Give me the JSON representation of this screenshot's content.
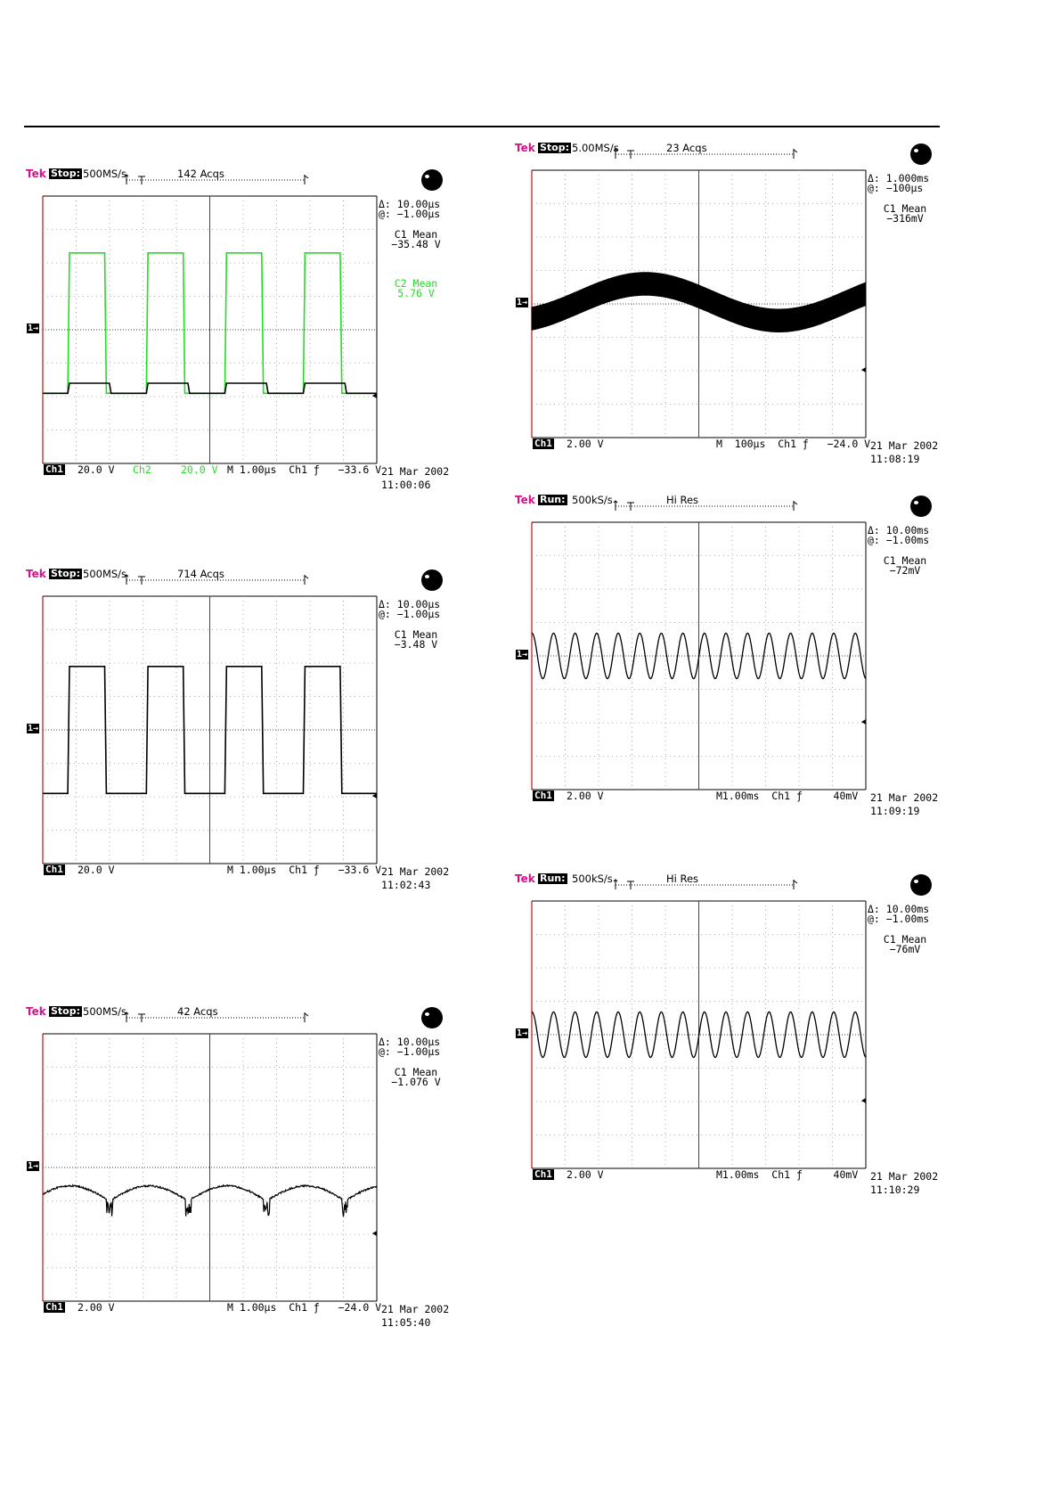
{
  "scopes": [
    {
      "id": "s1",
      "brand": "Tek",
      "state": "Stop:",
      "rate": "500MS/s",
      "acqs": "142 Acqs",
      "delta": "Δ: 10.00μs",
      "at": "@: −1.00μs",
      "c1_label": "C1 Mean",
      "c1_value": "−35.48 V",
      "c2_label": "C2 Mean",
      "c2_value": "5.76 V",
      "ch1": "Ch1",
      "ch1_scale": "20.0 V",
      "ch2": "Ch2",
      "ch2_scale": "20.0 V",
      "timebase": "M 1.00μs  Ch1 ƒ   −33.6 V",
      "date": "21 Mar 2002",
      "time": "11:00:06"
    },
    {
      "id": "s2",
      "brand": "Tek",
      "state": "Stop:",
      "rate": "500MS/s",
      "acqs": "714 Acqs",
      "delta": "Δ: 10.00μs",
      "at": "@: −1.00μs",
      "c1_label": "C1 Mean",
      "c1_value": "−3.48 V",
      "ch1": "Ch1",
      "ch1_scale": "20.0 V",
      "timebase": "M 1.00μs  Ch1 ƒ   −33.6 V",
      "date": "21 Mar 2002",
      "time": "11:02:43"
    },
    {
      "id": "s3",
      "brand": "Tek",
      "state": "Stop:",
      "rate": "500MS/s",
      "acqs": "42 Acqs",
      "delta": "Δ: 10.00μs",
      "at": "@: −1.00μs",
      "c1_label": "C1 Mean",
      "c1_value": "−1.076 V",
      "ch1": "Ch1",
      "ch1_scale": "2.00 V",
      "timebase": "M 1.00μs  Ch1 ƒ   −24.0 V",
      "date": "21 Mar 2002",
      "time": "11:05:40"
    },
    {
      "id": "s4",
      "brand": "Tek",
      "state": "Stop:",
      "rate": "5.00MS/s",
      "acqs": "23 Acqs",
      "delta": "Δ: 1.000ms",
      "at": "@: −100μs",
      "c1_label": "C1 Mean",
      "c1_value": "−316mV",
      "ch1": "Ch1",
      "ch1_scale": "2.00 V",
      "timebase": "M  100μs  Ch1 ƒ   −24.0 V",
      "date": "21 Mar 2002",
      "time": "11:08:19"
    },
    {
      "id": "s5",
      "brand": "Tek",
      "state": "Run:",
      "rate": "500kS/s",
      "acqs": "Hi Res",
      "delta": "Δ: 10.00ms",
      "at": "@: −1.00ms",
      "c1_label": "C1 Mean",
      "c1_value": "−72mV",
      "ch1": "Ch1",
      "ch1_scale": "2.00 V",
      "timebase": "M1.00ms  Ch1 ƒ     40mV",
      "date": "21 Mar 2002",
      "time": "11:09:19"
    },
    {
      "id": "s6",
      "brand": "Tek",
      "state": "Run:",
      "rate": "500kS/s",
      "acqs": "Hi Res",
      "delta": "Δ: 10.00ms",
      "at": "@: −1.00ms",
      "c1_label": "C1 Mean",
      "c1_value": "−76mV",
      "ch1": "Ch1",
      "ch1_scale": "2.00 V",
      "timebase": "M1.00ms  Ch1 ƒ     40mV",
      "date": "21 Mar 2002",
      "time": "11:10:29"
    }
  ],
  "chart_data": [
    {
      "type": "line",
      "panel": "s1",
      "xlabel": "M 1.00μs",
      "ylabel": "Ch1 20.0 V, Ch2 20.0 V",
      "grid": true,
      "series": [
        {
          "name": "Ch2",
          "color": "#22dd22",
          "shape": "square",
          "period_div": 2.35,
          "duty": 0.47,
          "high_div": 2.3,
          "low_div": -1.9
        },
        {
          "name": "Ch1",
          "color": "#000000",
          "shape": "square",
          "period_div": 2.35,
          "duty": 0.53,
          "high_div": -1.6,
          "low_div": -1.9
        }
      ]
    },
    {
      "type": "line",
      "panel": "s2",
      "xlabel": "M 1.00μs",
      "ylabel": "Ch1 20.0 V",
      "grid": true,
      "series": [
        {
          "name": "Ch1",
          "color": "#000000",
          "shape": "square",
          "period_div": 2.35,
          "duty": 0.47,
          "high_div": 1.9,
          "low_div": -1.9
        }
      ]
    },
    {
      "type": "line",
      "panel": "s3",
      "xlabel": "M 1.00μs",
      "ylabel": "Ch1 2.00 V",
      "grid": true,
      "series": [
        {
          "name": "Ch1",
          "color": "#000000",
          "shape": "ripple",
          "period_div": 2.35,
          "center_div": -0.55,
          "amp_div": 0.45
        }
      ]
    },
    {
      "type": "line",
      "panel": "s4",
      "xlabel": "M 100μs",
      "ylabel": "Ch1 2.00 V",
      "grid": true,
      "series": [
        {
          "name": "Ch1",
          "color": "#000000",
          "shape": "thick-sine",
          "cycles": 1.25,
          "center_div": 0.05,
          "amp_div": 0.55,
          "band_div": 0.68
        }
      ]
    },
    {
      "type": "line",
      "panel": "s5",
      "xlabel": "M1.00ms",
      "ylabel": "Ch1 2.00 V",
      "grid": true,
      "series": [
        {
          "name": "Ch1",
          "color": "#000000",
          "shape": "sine",
          "cycles": 15.5,
          "center_div": 0.0,
          "amp_div": 0.68
        }
      ]
    },
    {
      "type": "line",
      "panel": "s6",
      "xlabel": "M1.00ms",
      "ylabel": "Ch1 2.00 V",
      "grid": true,
      "series": [
        {
          "name": "Ch1",
          "color": "#000000",
          "shape": "sine",
          "cycles": 15.5,
          "center_div": 0.0,
          "amp_div": 0.68
        }
      ]
    }
  ]
}
